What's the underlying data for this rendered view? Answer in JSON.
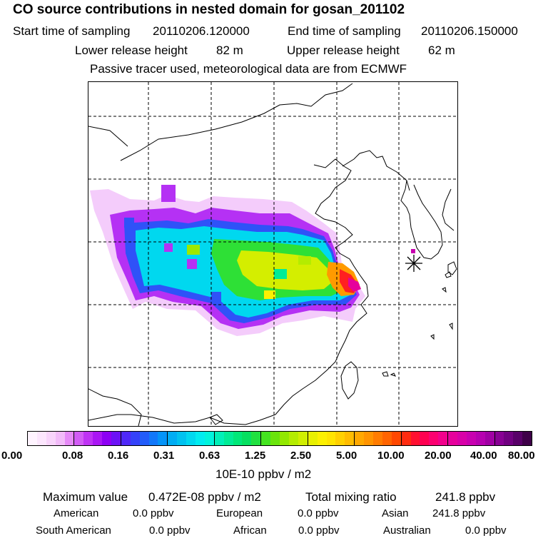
{
  "header": {
    "title": "CO  source contributions in nested domain for gosan_201102",
    "start_label": "Start time of sampling",
    "start_value": "20110206.120000",
    "end_label": "End time of sampling",
    "end_value": "20110206.150000",
    "lower_label": "Lower release height",
    "lower_value": "82 m",
    "upper_label": "Upper release height",
    "upper_value": "62 m",
    "note": "Passive tracer used, meteorological data are from ECMWF"
  },
  "legend": {
    "ticks": [
      "0.00",
      "0.08",
      "0.16",
      "0.31",
      "0.63",
      "1.25",
      "2.50",
      "5.00",
      "10.00",
      "20.00",
      "40.00",
      "80.00"
    ],
    "units": "10E-10 ppbv / m2",
    "colors": [
      "#fff4ff",
      "#fce6fd",
      "#f8d4fb",
      "#f2bbf9",
      "#e68af7",
      "#d25cf5",
      "#bf33f4",
      "#aa16f4",
      "#8d00f4",
      "#6c12f6",
      "#4f28f8",
      "#3542f9",
      "#225cfa",
      "#1278fa",
      "#0594f8",
      "#00adf4",
      "#00c2f0",
      "#00d8f0",
      "#00ecf0",
      "#00f4dc",
      "#00f0b8",
      "#00ec96",
      "#00e878",
      "#06e060",
      "#20e040",
      "#44e420",
      "#6ae40c",
      "#92e800",
      "#b4ec00",
      "#d0ee00",
      "#e8f000",
      "#fcf000",
      "#ffe400",
      "#ffd000",
      "#ffbc00",
      "#ffa800",
      "#ff9400",
      "#ff7c00",
      "#ff6400",
      "#ff4800",
      "#ff2c10",
      "#ff1030",
      "#ff0050",
      "#fc0070",
      "#f2008c",
      "#e6009c",
      "#d800a8",
      "#c800b0",
      "#b600b0",
      "#a000a4",
      "#880094",
      "#700080",
      "#580068",
      "#3e0048"
    ]
  },
  "stats": {
    "max_label": "Maximum value",
    "max_value": "0.472E-08 ppbv / m2",
    "total_label": "Total mixing ratio",
    "total_value": "241.8 ppbv"
  },
  "sources": [
    {
      "name": "American",
      "value": "0.0 ppbv"
    },
    {
      "name": "European",
      "value": "0.0 ppbv"
    },
    {
      "name": "Asian",
      "value": "241.8 ppbv"
    },
    {
      "name": "South American",
      "value": "0.0 ppbv"
    },
    {
      "name": "African",
      "value": "0.0 ppbv"
    },
    {
      "name": "Australian",
      "value": "0.0 ppbv"
    }
  ],
  "map": {
    "receptor_marker": "asterisk-icon"
  }
}
